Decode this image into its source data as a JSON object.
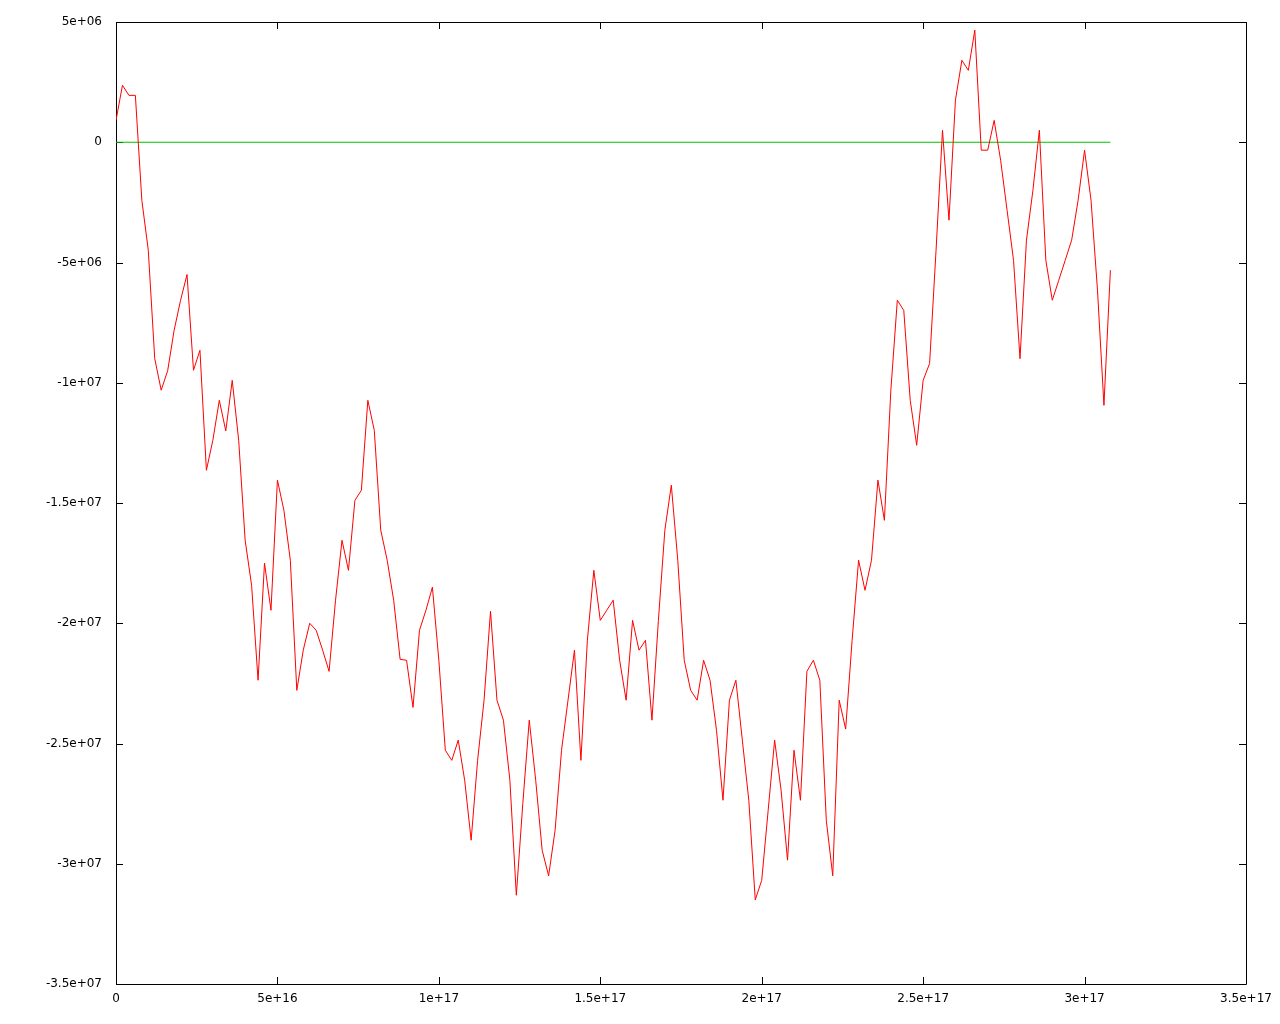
{
  "chart_data": {
    "type": "line",
    "xlim": [
      0,
      3.5e+17
    ],
    "xticks": [
      {
        "value": 0,
        "label": "0"
      },
      {
        "value": 5e+16,
        "label": "5e+16"
      },
      {
        "value": 1e+17,
        "label": "1e+17"
      },
      {
        "value": 1.5e+17,
        "label": "1.5e+17"
      },
      {
        "value": 2e+17,
        "label": "2e+17"
      },
      {
        "value": 2.5e+17,
        "label": "2.5e+17"
      },
      {
        "value": 3e+17,
        "label": "3e+17"
      },
      {
        "value": 3.5e+17,
        "label": "3.5e+17"
      }
    ],
    "ylim": [
      -35000000.0,
      5000000.0
    ],
    "yticks": [
      {
        "value": -35000000.0,
        "label": "-3.5e+07"
      },
      {
        "value": -30000000.0,
        "label": "-3e+07"
      },
      {
        "value": -25000000.0,
        "label": "-2.5e+07"
      },
      {
        "value": -20000000.0,
        "label": "-2e+07"
      },
      {
        "value": -15000000.0,
        "label": "-1.5e+07"
      },
      {
        "value": -10000000.0,
        "label": "-1e+07"
      },
      {
        "value": -5000000.0,
        "label": "-5e+06"
      },
      {
        "value": 0,
        "label": "0"
      },
      {
        "value": 5000000.0,
        "label": "5e+06"
      }
    ],
    "marker": "none",
    "series": [
      {
        "color": "#ff0000",
        "x": [
          0,
          2000000000000000.0,
          4000000000000000.0,
          6000000000000000.0,
          8000000000000000.0,
          1e+16,
          1.2e+16,
          1.4e+16,
          1.6e+16,
          1.8e+16,
          2e+16,
          2.2e+16,
          2.4e+16,
          2.6e+16,
          2.8e+16,
          3e+16,
          3.2e+16,
          3.4e+16,
          3.6e+16,
          3.8e+16,
          4e+16,
          4.2e+16,
          4.4e+16,
          4.6e+16,
          4.8e+16,
          5e+16,
          5.2e+16,
          5.4e+16,
          5.6e+16,
          5.8e+16,
          6e+16,
          6.2e+16,
          6.4e+16,
          6.6e+16,
          6.8e+16,
          7e+16,
          7.2e+16,
          7.4e+16,
          7.6e+16,
          7.8e+16,
          8e+16,
          8.2e+16,
          8.4e+16,
          8.6e+16,
          8.8e+16,
          9e+16,
          9.2e+16,
          9.4e+16,
          9.6e+16,
          9.8e+16,
          1e+17,
          1.02e+17,
          1.04e+17,
          1.06e+17,
          1.08e+17,
          1.1e+17,
          1.12e+17,
          1.14e+17,
          1.16e+17,
          1.18e+17,
          1.2e+17,
          1.22e+17,
          1.24e+17,
          1.26e+17,
          1.28e+17,
          1.3e+17,
          1.32e+17,
          1.34e+17,
          1.36e+17,
          1.38e+17,
          1.4e+17,
          1.42e+17,
          1.44e+17,
          1.46e+17,
          1.48e+17,
          1.5e+17,
          1.52e+17,
          1.54e+17,
          1.56e+17,
          1.58e+17,
          1.6e+17,
          1.62e+17,
          1.64e+17,
          1.66e+17,
          1.68e+17,
          1.7e+17,
          1.72e+17,
          1.74e+17,
          1.76e+17,
          1.78e+17,
          1.8e+17,
          1.82e+17,
          1.84e+17,
          1.86e+17,
          1.88e+17,
          1.9e+17,
          1.92e+17,
          1.94e+17,
          1.96e+17,
          1.98e+17,
          2e+17,
          2.02e+17,
          2.04e+17,
          2.06e+17,
          2.08e+17,
          2.1e+17,
          2.12e+17,
          2.14e+17,
          2.16e+17,
          2.18e+17,
          2.2e+17,
          2.22e+17,
          2.24e+17,
          2.26e+17,
          2.28e+17,
          2.3e+17,
          2.32e+17,
          2.34e+17,
          2.36e+17,
          2.38e+17,
          2.4e+17,
          2.42e+17,
          2.44e+17,
          2.46e+17,
          2.48e+17,
          2.5e+17,
          2.52e+17,
          2.54e+17,
          2.56e+17,
          2.58e+17,
          2.6e+17,
          2.62e+17,
          2.64e+17,
          2.66e+17,
          2.68e+17,
          2.7e+17,
          2.72e+17,
          2.74e+17,
          2.76e+17,
          2.78e+17,
          2.8e+17,
          2.82e+17,
          2.84e+17,
          2.86e+17,
          2.88e+17,
          2.9e+17,
          2.92e+17,
          2.94e+17,
          2.96e+17,
          2.98e+17,
          3e+17,
          3.02e+17,
          3.04e+17,
          3.06e+17,
          3.08e+17
        ],
        "values": [
          910000,
          2370000,
          1950000,
          1950000,
          -2410000,
          -4490000,
          -9000000,
          -10310000,
          -9500000,
          -7820000,
          -6570000,
          -5500000,
          -9480000,
          -8650000,
          -13640000,
          -12390000,
          -10730000,
          -12000000,
          -9900000,
          -12390000,
          -16550000,
          -18420000,
          -22370000,
          -17500000,
          -19460000,
          -14050000,
          -15300000,
          -17380000,
          -22790000,
          -21120000,
          -20000000,
          -20290000,
          -21120000,
          -22000000,
          -19040000,
          -16550000,
          -17800000,
          -14890000,
          -14470000,
          -10730000,
          -11980000,
          -16130000,
          -17380000,
          -19040000,
          -21500000,
          -21540000,
          -23500000,
          -20290000,
          -19460000,
          -18500000,
          -21540000,
          -25280000,
          -25700000,
          -24860000,
          -26530000,
          -29020000,
          -25700000,
          -23200000,
          -19500000,
          -23200000,
          -24030000,
          -26530000,
          -31310000,
          -27500000,
          -24030000,
          -26530000,
          -29440000,
          -30500000,
          -28610000,
          -25280000,
          -23200000,
          -21120000,
          -25700000,
          -20710000,
          -17800000,
          -19880000,
          -19460000,
          -19040000,
          -21540000,
          -23200000,
          -19880000,
          -21120000,
          -20710000,
          -24030000,
          -19880000,
          -16130000,
          -14260000,
          -17380000,
          -21540000,
          -22790000,
          -23200000,
          -21540000,
          -22370000,
          -24450000,
          -27360000,
          -23200000,
          -22370000,
          -24860000,
          -27360000,
          -31500000,
          -30690000,
          -27780000,
          -24860000,
          -26940000,
          -29850000,
          -25280000,
          -27360000,
          -22000000,
          -21540000,
          -22370000,
          -28190000,
          -30500000,
          -23200000,
          -24400000,
          -20710000,
          -17380000,
          -18630000,
          -17380000,
          -14050000,
          -15720000,
          -10310000,
          -6570000,
          -6990000,
          -10730000,
          -12600000,
          -9900000,
          -9200000,
          -4490000,
          500000,
          -3240000,
          1750000,
          3410000,
          2990000,
          4660000,
          -330000,
          -330000,
          910000,
          -750000,
          -2830000,
          -4910000,
          -9000000,
          -4070000,
          -2000000,
          500000,
          -4910000,
          -6570000,
          -5740000,
          -4910000,
          -4070000,
          -2410000,
          -330000,
          -2410000,
          -6150000,
          -10940000,
          -5320000
        ]
      },
      {
        "color": "#00c000",
        "x": [
          0,
          3.08e+17
        ],
        "values": [
          0,
          0
        ]
      }
    ]
  }
}
